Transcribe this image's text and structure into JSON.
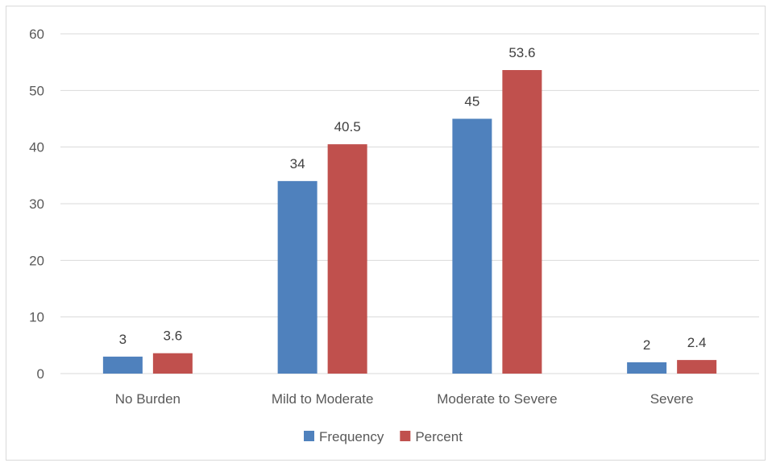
{
  "chart_data": {
    "type": "bar",
    "title": "",
    "xlabel": "",
    "ylabel": "",
    "categories": [
      "No Burden",
      "Mild to Moderate",
      "Moderate to Severe",
      "Severe"
    ],
    "series": [
      {
        "name": "Frequency",
        "values": [
          3,
          34,
          45,
          2
        ],
        "data_labels": [
          "3",
          "34",
          "45",
          "2"
        ],
        "color": "#4f81bd"
      },
      {
        "name": "Percent",
        "values": [
          3.6,
          40.5,
          53.6,
          2.4
        ],
        "data_labels": [
          "3.6",
          "40.5",
          "53.6",
          "2.4"
        ],
        "color": "#c0504d"
      }
    ],
    "ylim": [
      0,
      60
    ],
    "yticks": [
      0,
      10,
      20,
      30,
      40,
      50,
      60
    ],
    "ytick_labels": [
      "0",
      "10",
      "20",
      "30",
      "40",
      "50",
      "60"
    ],
    "grid": true,
    "legend_position": "bottom"
  }
}
